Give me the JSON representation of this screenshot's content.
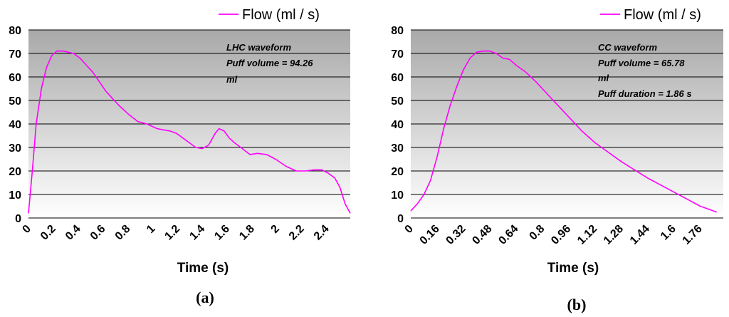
{
  "chart_data": [
    {
      "type": "line",
      "panel_label": "(a)",
      "xlabel": "Time (s)",
      "ylabel": "",
      "ylim": [
        0,
        80
      ],
      "yticks": [
        0,
        10,
        20,
        30,
        40,
        50,
        60,
        70,
        80
      ],
      "xlim": [
        0,
        2.5
      ],
      "xticks": [
        "0",
        "0.2",
        "0.4",
        "0.6",
        "0.8",
        "1",
        "1.2",
        "1.4",
        "1.6",
        "1.8",
        "2",
        "2.2",
        "2.4"
      ],
      "grid": true,
      "legend": "top-right",
      "annotations": [
        "LHC waveform",
        "Puff volume = 94.26",
        "ml"
      ],
      "series": [
        {
          "name": "Flow (ml / s)",
          "color": "#ff00ff",
          "x": [
            0.0,
            0.03,
            0.06,
            0.1,
            0.14,
            0.18,
            0.22,
            0.27,
            0.31,
            0.35,
            0.4,
            0.45,
            0.5,
            0.55,
            0.6,
            0.65,
            0.7,
            0.78,
            0.85,
            0.92,
            1.0,
            1.05,
            1.1,
            1.15,
            1.2,
            1.25,
            1.3,
            1.35,
            1.4,
            1.45,
            1.48,
            1.52,
            1.56,
            1.6,
            1.65,
            1.72,
            1.78,
            1.85,
            1.92,
            2.0,
            2.08,
            2.15,
            2.22,
            2.28,
            2.33,
            2.38,
            2.42,
            2.46,
            2.5
          ],
          "y": [
            2,
            20,
            40,
            55,
            64,
            69,
            71,
            71,
            70.5,
            70,
            68,
            65,
            62,
            58,
            54,
            51,
            48,
            44,
            41,
            40,
            38,
            37.5,
            37,
            36,
            34,
            32,
            30,
            29.5,
            31,
            36,
            38,
            37,
            34,
            32,
            30,
            27,
            27.5,
            27,
            25,
            22,
            20,
            20,
            20.5,
            20.5,
            19,
            17,
            13,
            6,
            2
          ]
        }
      ]
    },
    {
      "type": "line",
      "panel_label": "(b)",
      "xlabel": "Time (s)",
      "ylabel": "",
      "ylim": [
        0,
        80
      ],
      "yticks": [
        0,
        10,
        20,
        30,
        40,
        50,
        60,
        70,
        80
      ],
      "xlim": [
        0,
        1.9
      ],
      "xticks": [
        "0",
        "0.16",
        "0.32",
        "0.48",
        "0.64",
        "0.8",
        "0.96",
        "1.12",
        "1.28",
        "1.44",
        "1.6",
        "1.76"
      ],
      "grid": true,
      "legend": "top-right",
      "annotations": [
        "CC waveform",
        "Puff volume = 65.78",
        "ml",
        "Puff duration = 1.86 s"
      ],
      "series": [
        {
          "name": "Flow (ml / s)",
          "color": "#ff00ff",
          "x": [
            0.0,
            0.04,
            0.08,
            0.12,
            0.16,
            0.2,
            0.24,
            0.28,
            0.32,
            0.36,
            0.4,
            0.44,
            0.48,
            0.52,
            0.56,
            0.6,
            0.64,
            0.7,
            0.76,
            0.8,
            0.88,
            0.96,
            1.04,
            1.12,
            1.2,
            1.28,
            1.36,
            1.44,
            1.52,
            1.6,
            1.68,
            1.76,
            1.82,
            1.86
          ],
          "y": [
            3,
            6,
            10,
            16,
            26,
            38,
            48,
            56,
            63,
            68,
            70.5,
            71,
            71,
            70,
            68,
            67.5,
            65,
            62,
            58,
            55,
            49,
            43,
            37,
            32,
            28,
            24,
            20.5,
            17,
            14,
            11,
            8,
            5,
            3.5,
            2.5
          ]
        }
      ]
    }
  ]
}
